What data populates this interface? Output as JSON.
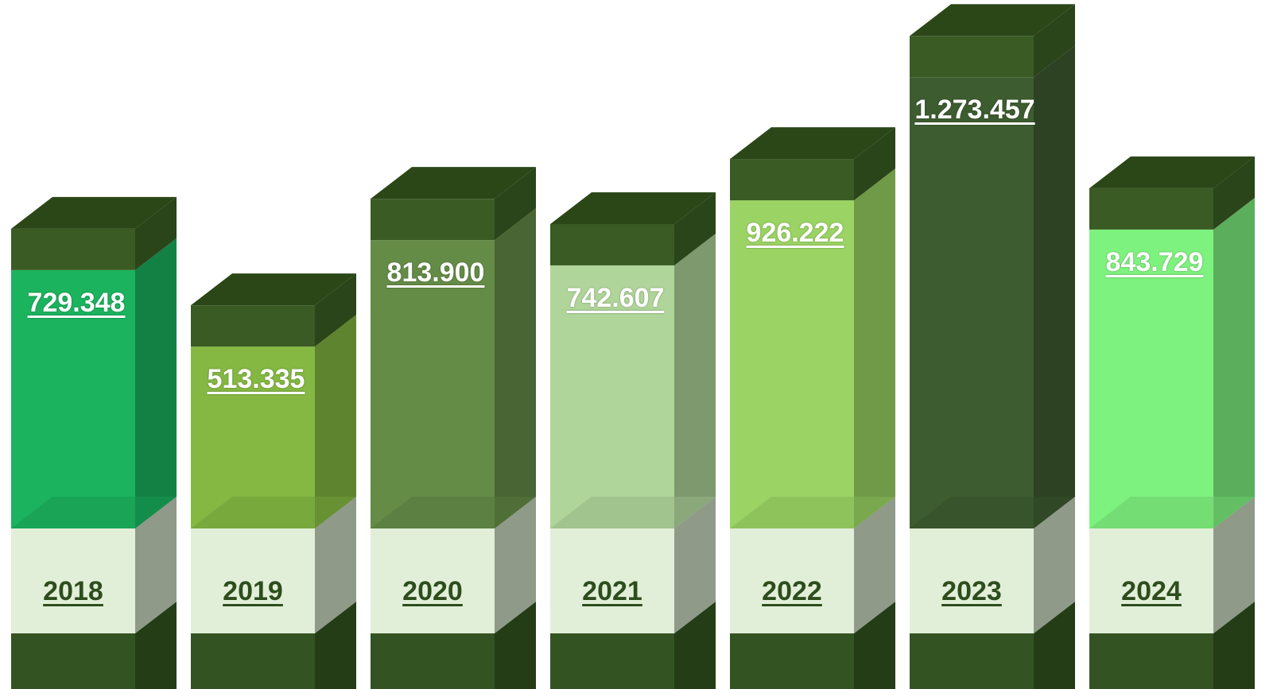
{
  "chart_data": {
    "type": "bar",
    "categories": [
      "2018",
      "2019",
      "2020",
      "2021",
      "2022",
      "2023",
      "2024"
    ],
    "values": [
      729348,
      513335,
      813900,
      742607,
      926222,
      1273457,
      843729
    ],
    "value_labels": [
      "729.348",
      "513.335",
      "813.900",
      "742.607",
      "926.222",
      "1.273.457",
      "843.729"
    ],
    "bar_colors": [
      "#1bb35e",
      "#84b843",
      "#658c47",
      "#b0d59a",
      "#9bd464",
      "#3d5c30",
      "#7ef27e"
    ],
    "cap_color": "#3a5b24",
    "base_color": "#e1efd8",
    "style": "3d-columns"
  }
}
